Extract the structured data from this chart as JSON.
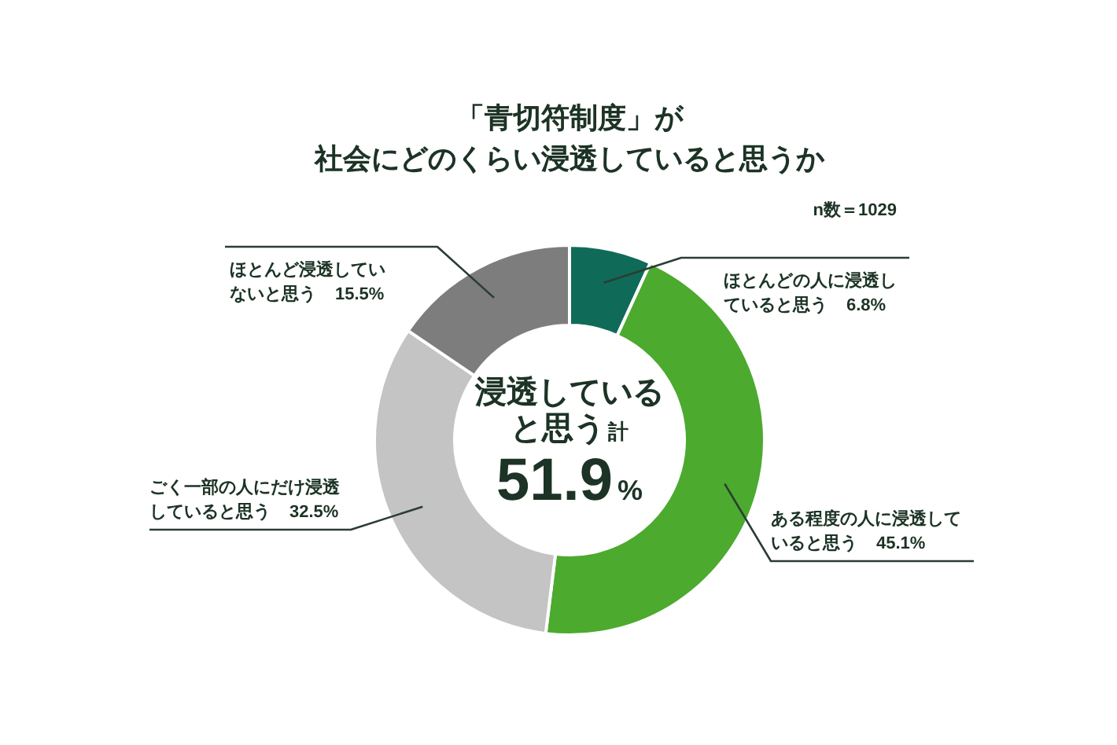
{
  "chart_data": {
    "type": "donut",
    "title": "「青切符制度」が",
    "subtitle": "社会にどのくらい浸透していると思うか",
    "categories": [
      "ほとんどの人に浸透していると思う",
      "ある程度の人に浸透していると思う",
      "ごく一部の人にだけ浸透していると思う",
      "ほとんど浸透していないと思う"
    ],
    "values": [
      6.8,
      45.1,
      32.5,
      15.5
    ],
    "value_labels": [
      "6.8%",
      "45.1%",
      "32.5%",
      "15.5%"
    ],
    "colors": [
      "#0f6b58",
      "#4caa2f",
      "#c4c4c4",
      "#7d7d7d"
    ],
    "annotations": [
      "n数＝1029",
      "浸透していると思う計",
      "51.9%"
    ]
  }
}
